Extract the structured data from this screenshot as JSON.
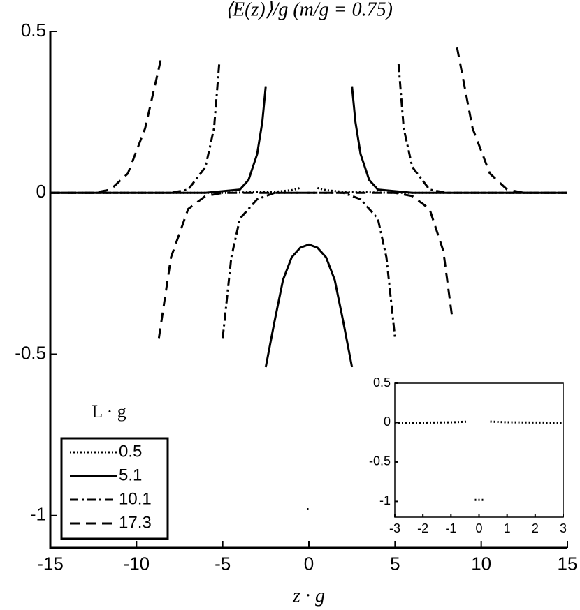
{
  "chart_data": [
    {
      "type": "line",
      "title": "⟨E(z)⟩/g (m/g = 0.75)",
      "x_label": "z · g",
      "legend_title": "L · g",
      "xlim": [
        -15,
        15
      ],
      "ylim": [
        -1.1,
        0.5
      ],
      "xticks": [
        -15,
        -10,
        -5,
        0,
        5,
        10,
        15
      ],
      "yticks": [
        0.5,
        0,
        -0.5,
        -1
      ],
      "legend_position": "lower left",
      "series": [
        {
          "name": "0.5",
          "color": "#000000",
          "dash": "dotted",
          "x": [
            -15,
            -5,
            -2,
            -1,
            -0.5,
            null,
            -0.1,
            0.1,
            null,
            0.5,
            1,
            2,
            5,
            15
          ],
          "values": [
            0,
            0,
            0.003,
            0.008,
            0.015,
            null,
            -0.98,
            -0.98,
            null,
            0.015,
            0.008,
            0.003,
            0,
            0
          ]
        },
        {
          "name": "5.1",
          "color": "#000000",
          "dash": "solid",
          "x": [
            -15,
            -6,
            -4,
            -3.5,
            -3,
            -2.7,
            -2.5,
            null,
            -2.5,
            -2,
            -1.5,
            -1,
            -0.5,
            0,
            0.5,
            1,
            1.5,
            2,
            2.5,
            null,
            2.5,
            2.7,
            3,
            3.5,
            4,
            6,
            15
          ],
          "values": [
            0,
            0,
            0.01,
            0.04,
            0.12,
            0.22,
            0.33,
            null,
            -0.54,
            -0.4,
            -0.27,
            -0.2,
            -0.17,
            -0.16,
            -0.17,
            -0.2,
            -0.27,
            -0.4,
            -0.54,
            null,
            0.33,
            0.22,
            0.12,
            0.04,
            0.01,
            0,
            0
          ]
        },
        {
          "name": "10.1",
          "color": "#000000",
          "dash": "dashdot",
          "x": [
            -15,
            -8,
            -7,
            -6,
            -5.5,
            -5.2,
            null,
            -5,
            -4.5,
            -4,
            -3,
            -2,
            0,
            2,
            3,
            4,
            4.5,
            5,
            null,
            5.2,
            5.5,
            6,
            7,
            8,
            15
          ],
          "values": [
            0,
            0,
            0.01,
            0.08,
            0.2,
            0.4,
            null,
            -0.45,
            -0.2,
            -0.08,
            -0.02,
            0,
            0,
            0,
            -0.02,
            -0.08,
            -0.2,
            -0.45,
            null,
            0.4,
            0.2,
            0.08,
            0.01,
            0,
            0
          ]
        },
        {
          "name": "17.3",
          "color": "#000000",
          "dash": "dashed",
          "x": [
            -15,
            -12.5,
            -11.5,
            -10.5,
            -9.5,
            -8.6,
            null,
            -8.7,
            -8,
            -7,
            -6,
            -5,
            0,
            5,
            6,
            7,
            7.8,
            8.3,
            null,
            8.6,
            9.5,
            10.5,
            11.5,
            12.5,
            15
          ],
          "values": [
            0,
            0,
            0.01,
            0.06,
            0.2,
            0.41,
            null,
            -0.45,
            -0.2,
            -0.05,
            -0.01,
            0,
            0,
            0,
            -0.01,
            -0.05,
            -0.18,
            -0.38,
            null,
            0.45,
            0.2,
            0.06,
            0.01,
            0,
            0
          ]
        }
      ]
    },
    {
      "type": "line",
      "xlim": [
        -3,
        3
      ],
      "ylim": [
        -1.2,
        0.5
      ],
      "xticks": [
        -3,
        -2,
        -1,
        0,
        1,
        2,
        3
      ],
      "yticks": [
        0.5,
        0,
        -0.5,
        -1
      ],
      "series": [
        {
          "color": "#000000",
          "dash": "dotted",
          "x": [
            -3,
            -2,
            -1,
            -0.4,
            null,
            -0.15,
            0.15,
            null,
            0.4,
            1,
            2,
            3
          ],
          "values": [
            0,
            0,
            0.003,
            0.012,
            null,
            -0.98,
            -0.98,
            null,
            0.012,
            0.004,
            0.001,
            0
          ]
        }
      ]
    }
  ]
}
